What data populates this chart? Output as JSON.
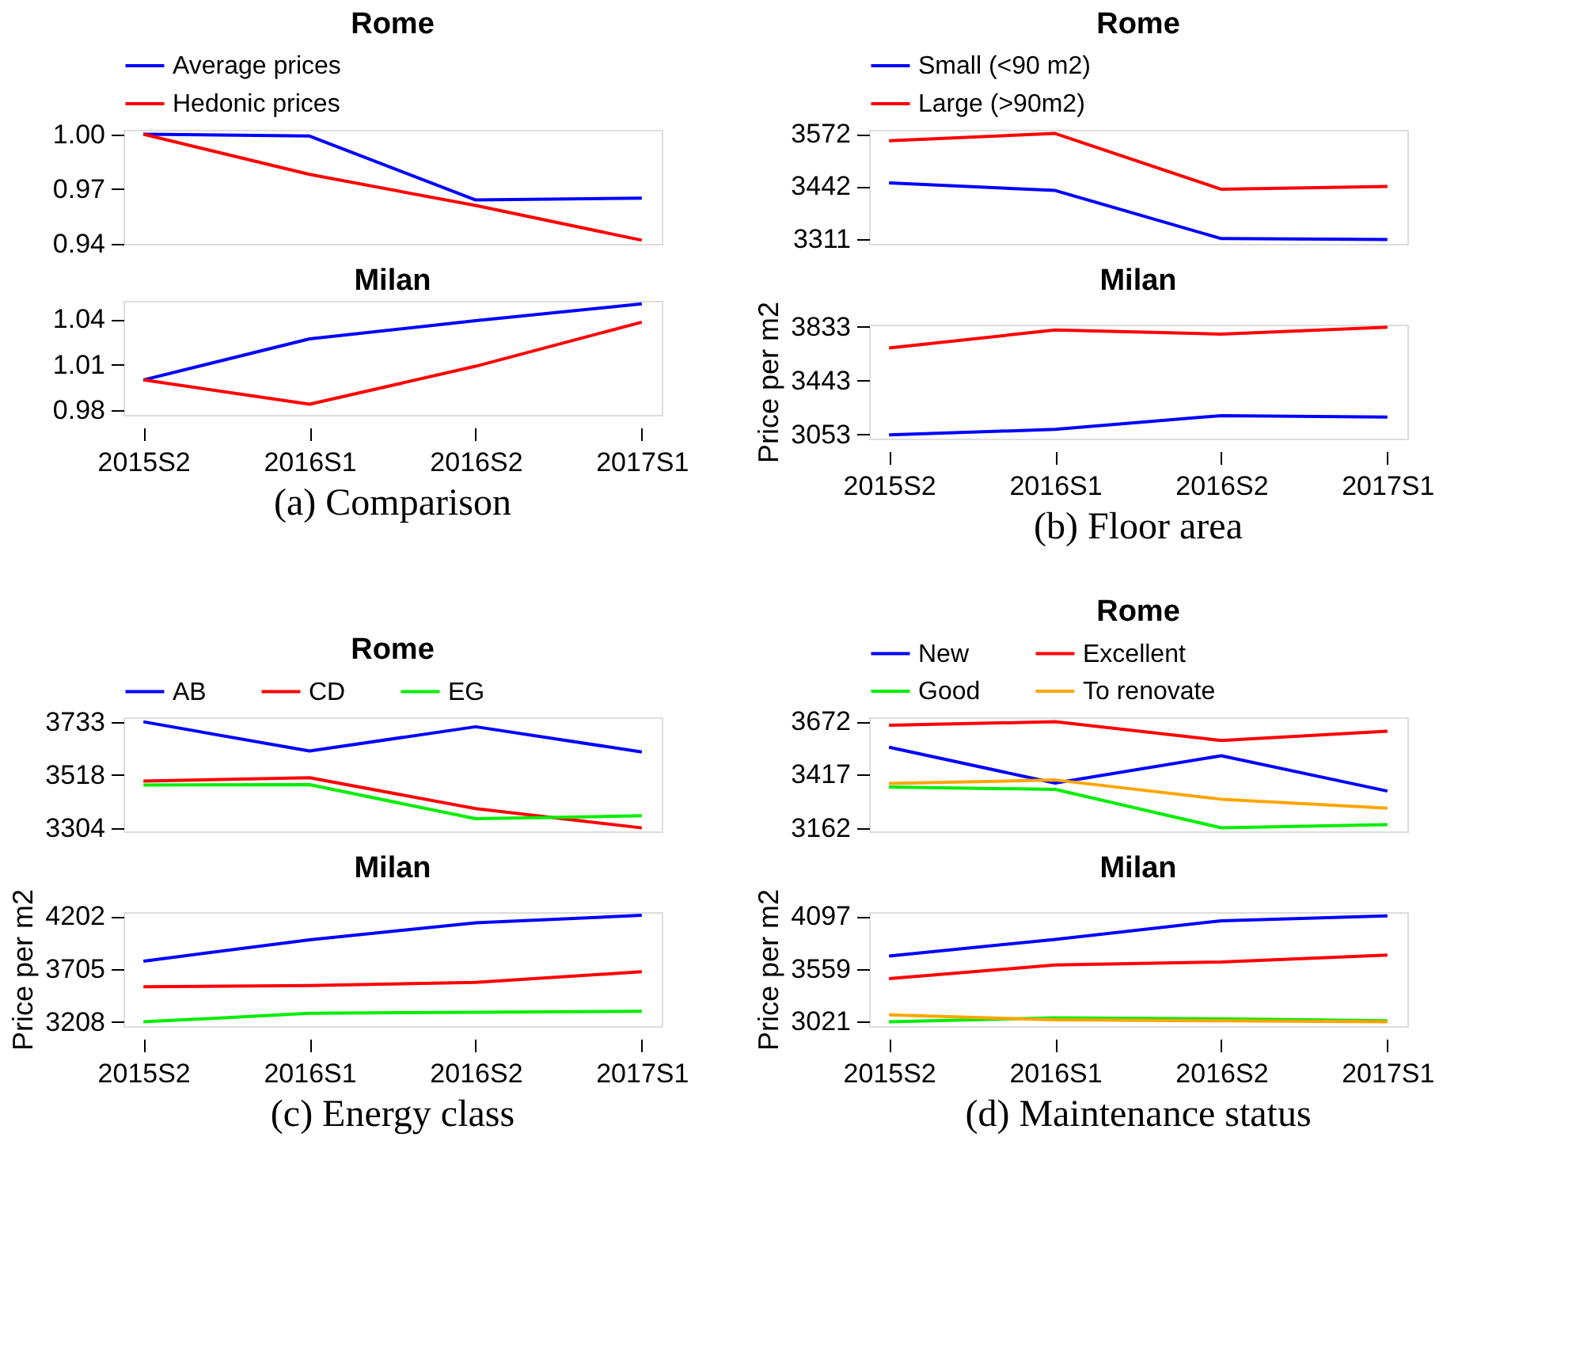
{
  "chart_data": [
    {
      "type": "line",
      "title": "Rome",
      "categories": [
        null,
        null,
        null,
        null
      ],
      "ylim": [
        0.94,
        1.0024
      ],
      "yticks": [
        {
          "value": 0.94,
          "label": "0.94"
        },
        {
          "value": 0.97,
          "label": "0.97"
        },
        {
          "value": 1.0,
          "label": "1.00"
        }
      ],
      "grid": false,
      "legend": "top",
      "tick_labels": "y",
      "line_style": "solid",
      "series": [
        {
          "name": "Average prices",
          "color": "#0000ff",
          "values": [
            1.0,
            0.999,
            0.964,
            0.965
          ]
        },
        {
          "name": "Hedonic prices",
          "color": "#ff0000",
          "values": [
            1.0,
            0.978,
            0.961,
            0.942
          ]
        }
      ]
    },
    {
      "type": "line",
      "title": "Milan",
      "categories": [
        "2015S2",
        "2016S1",
        "2016S2",
        "2017S1"
      ],
      "ylim": [
        0.977,
        1.052
      ],
      "yticks": [
        {
          "value": 0.98,
          "label": "0.98"
        },
        {
          "value": 1.01,
          "label": "1.01"
        },
        {
          "value": 1.04,
          "label": "1.04"
        }
      ],
      "grid": false,
      "legend": false,
      "line_style": "solid",
      "annotations": [
        "(a) Comparison"
      ],
      "series": [
        {
          "color": "#0000ff",
          "values": [
            1.0,
            1.027,
            1.039,
            1.05
          ]
        },
        {
          "color": "#ff0000",
          "values": [
            1.0,
            0.984,
            1.009,
            1.038
          ]
        }
      ]
    },
    {
      "type": "line",
      "title": "Rome",
      "categories": [
        null,
        null,
        null,
        null
      ],
      "ylim": [
        3300,
        3582
      ],
      "yticks": [
        3311,
        3442,
        3572
      ],
      "grid": false,
      "legend": "top",
      "tick_labels": "y",
      "line_style": "solid",
      "series": [
        {
          "name": "Small (<90 m2)",
          "color": "#0000ff",
          "values": [
            3451,
            3432,
            3313,
            3311
          ]
        },
        {
          "name": "Large (>90m2)",
          "color": "#ff0000",
          "values": [
            3555,
            3573,
            3435,
            3442
          ]
        }
      ]
    },
    {
      "type": "line",
      "title": "Milan",
      "categories": [
        "2015S2",
        "2016S1",
        "2016S2",
        "2017S1"
      ],
      "ylabel": "Price per m2",
      "ylim": [
        3023,
        3849
      ],
      "yticks": [
        3053,
        3443,
        3833
      ],
      "grid": false,
      "legend": false,
      "line_style": "solid",
      "annotations": [
        "(b) Floor area"
      ],
      "series": [
        {
          "color": "#0000ff",
          "values": [
            3050,
            3090,
            3190,
            3180
          ]
        },
        {
          "color": "#ff0000",
          "values": [
            3680,
            3810,
            3780,
            3830
          ]
        }
      ]
    },
    {
      "type": "line",
      "title": "Rome",
      "categories": [
        null,
        null,
        null,
        null
      ],
      "ylim": [
        3290,
        3751
      ],
      "yticks": [
        3304,
        3518,
        3733
      ],
      "grid": false,
      "legend": "top",
      "tick_labels": "y",
      "line_style": "solid",
      "series": [
        {
          "name": "AB",
          "color": "#0000ff",
          "values": [
            3733,
            3615,
            3713,
            3611
          ]
        },
        {
          "name": "CD",
          "color": "#ff0000",
          "values": [
            3493,
            3507,
            3382,
            3304
          ]
        },
        {
          "name": "EG",
          "color": "#00ee00",
          "values": [
            3477,
            3479,
            3341,
            3353
          ]
        }
      ]
    },
    {
      "type": "line",
      "title": "Milan",
      "categories": [
        "2015S2",
        "2016S1",
        "2016S2",
        "2017S1"
      ],
      "ylabel": "Price per m2",
      "ylim": [
        3170,
        4240
      ],
      "yticks": [
        3208,
        3705,
        4202
      ],
      "grid": false,
      "legend": false,
      "line_style": "solid",
      "annotations": [
        "(c) Energy class"
      ],
      "series": [
        {
          "color": "#0000ff",
          "values": [
            3780,
            3980,
            4140,
            4210
          ]
        },
        {
          "color": "#ff0000",
          "values": [
            3540,
            3550,
            3580,
            3680
          ]
        },
        {
          "color": "#00ee00",
          "values": [
            3210,
            3290,
            3300,
            3310
          ]
        }
      ]
    },
    {
      "type": "line",
      "title": "Rome",
      "categories": [
        null,
        null,
        null,
        null
      ],
      "ylim": [
        3145,
        3691
      ],
      "yticks": [
        3162,
        3417,
        3672
      ],
      "grid": false,
      "legend": "top",
      "tick_labels": "y",
      "line_style": "solid",
      "series": [
        {
          "name": "New",
          "color": "#0000ff",
          "values": [
            3548,
            3376,
            3507,
            3338
          ]
        },
        {
          "name": "Excellent",
          "color": "#ff0000",
          "values": [
            3653,
            3670,
            3580,
            3625
          ]
        },
        {
          "name": "Good",
          "color": "#00ee00",
          "values": [
            3357,
            3346,
            3162,
            3177
          ]
        },
        {
          "name": "To renovate",
          "color": "#ffa500",
          "values": [
            3374,
            3391,
            3299,
            3256
          ]
        }
      ]
    },
    {
      "type": "line",
      "title": "Milan",
      "categories": [
        "2015S2",
        "2016S1",
        "2016S2",
        "2017S1"
      ],
      "ylabel": "Price per m2",
      "ylim": [
        2976,
        4138
      ],
      "yticks": [
        3021,
        3559,
        4097
      ],
      "grid": false,
      "legend": false,
      "line_style": "solid",
      "annotations": [
        "(d) Maintenance status"
      ],
      "series": [
        {
          "color": "#0000ff",
          "values": [
            3690,
            3860,
            4050,
            4100
          ]
        },
        {
          "color": "#ff0000",
          "values": [
            3460,
            3600,
            3630,
            3700
          ]
        },
        {
          "color": "#00ee00",
          "values": [
            3020,
            3060,
            3050,
            3030
          ]
        },
        {
          "color": "#ffa500",
          "values": [
            3090,
            3040,
            3030,
            3020
          ]
        }
      ]
    }
  ]
}
